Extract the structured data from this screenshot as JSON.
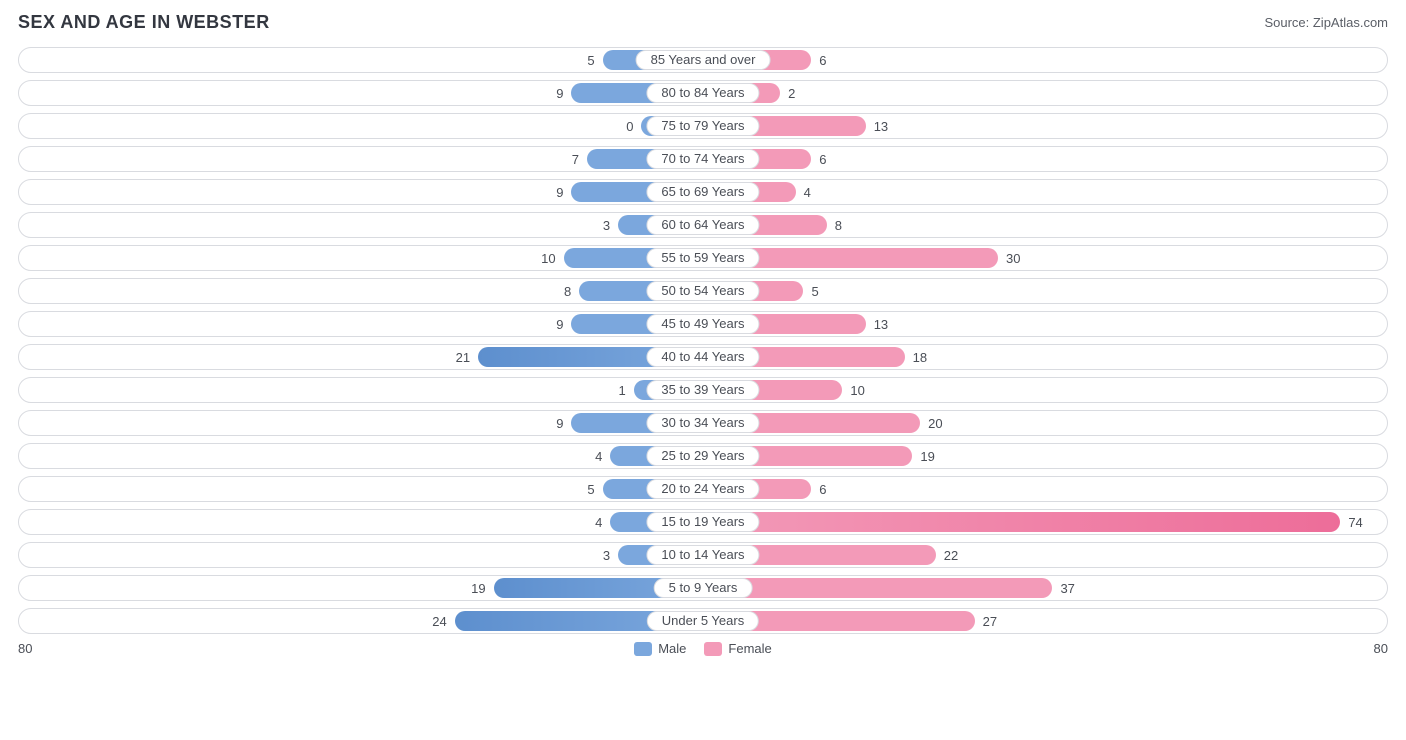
{
  "title": "SEX AND AGE IN WEBSTER",
  "source": "Source: ZipAtlas.com",
  "chart": {
    "type": "bar",
    "orientation": "horizontal-diverging",
    "axis_max": 80,
    "axis_left_label": "80",
    "axis_right_label": "80",
    "male_color": "#7ba7dd",
    "male_color_dark": "#5d8fce",
    "female_color": "#f39ab8",
    "female_color_dark": "#ed6d99",
    "track_border": "#d9dbe0",
    "track_bg": "#ffffff",
    "label_color": "#4a4e56",
    "label_fontsize": 13,
    "legend": {
      "male": "Male",
      "female": "Female"
    },
    "rows": [
      {
        "label": "85 Years and over",
        "male": 5,
        "female": 6
      },
      {
        "label": "80 to 84 Years",
        "male": 9,
        "female": 2
      },
      {
        "label": "75 to 79 Years",
        "male": 0,
        "female": 13
      },
      {
        "label": "70 to 74 Years",
        "male": 7,
        "female": 6
      },
      {
        "label": "65 to 69 Years",
        "male": 9,
        "female": 4
      },
      {
        "label": "60 to 64 Years",
        "male": 3,
        "female": 8
      },
      {
        "label": "55 to 59 Years",
        "male": 10,
        "female": 30
      },
      {
        "label": "50 to 54 Years",
        "male": 8,
        "female": 5
      },
      {
        "label": "45 to 49 Years",
        "male": 9,
        "female": 13
      },
      {
        "label": "40 to 44 Years",
        "male": 21,
        "female": 18
      },
      {
        "label": "35 to 39 Years",
        "male": 1,
        "female": 10
      },
      {
        "label": "30 to 34 Years",
        "male": 9,
        "female": 20
      },
      {
        "label": "25 to 29 Years",
        "male": 4,
        "female": 19
      },
      {
        "label": "20 to 24 Years",
        "male": 5,
        "female": 6
      },
      {
        "label": "15 to 19 Years",
        "male": 4,
        "female": 74
      },
      {
        "label": "10 to 14 Years",
        "male": 3,
        "female": 22
      },
      {
        "label": "5 to 9 Years",
        "male": 19,
        "female": 37
      },
      {
        "label": "Under 5 Years",
        "male": 24,
        "female": 27
      }
    ]
  }
}
